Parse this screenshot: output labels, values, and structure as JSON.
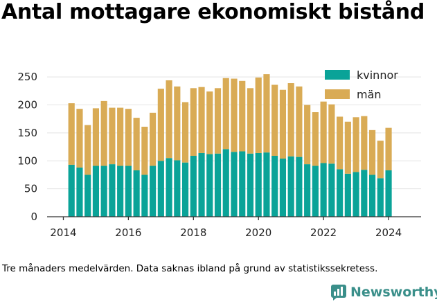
{
  "title": "Antal mottagare ekonomiskt bistånd",
  "footnote": "Tre månaders medelvärden. Data saknas ibland på grund av statistikssekretess.",
  "brand": {
    "name": "Newsworthy",
    "icon": "newsworthy-logo-icon",
    "color": "#3a8f8a"
  },
  "colors": {
    "kvinnor": "#0aa398",
    "man": "#d9ab55",
    "grid": "#e3e3e3",
    "axis": "#333333"
  },
  "chart_data": {
    "type": "bar",
    "stacked": true,
    "title": "Antal mottagare ekonomiskt bistånd",
    "xlabel": "",
    "ylabel": "",
    "ylim": [
      0,
      270
    ],
    "xlim": [
      2013.5,
      2025.0
    ],
    "grid": true,
    "legend_position": "top-right",
    "y_ticks": [
      0,
      50,
      100,
      150,
      200,
      250
    ],
    "x_ticks": [
      2014,
      2016,
      2018,
      2020,
      2022,
      2024
    ],
    "x": [
      2014.25,
      2014.5,
      2014.75,
      2015.0,
      2015.25,
      2015.5,
      2015.75,
      2016.0,
      2016.25,
      2016.5,
      2016.75,
      2017.0,
      2017.25,
      2017.5,
      2017.75,
      2018.0,
      2018.25,
      2018.5,
      2018.75,
      2019.0,
      2019.25,
      2019.5,
      2019.75,
      2020.0,
      2020.25,
      2020.5,
      2020.75,
      2021.0,
      2021.25,
      2021.5,
      2021.75,
      2022.0,
      2022.25,
      2022.5,
      2022.75,
      2023.0,
      2023.25,
      2023.5,
      2023.75,
      2024.0
    ],
    "series": [
      {
        "name": "kvinnor",
        "values": [
          93,
          88,
          75,
          91,
          91,
          94,
          91,
          91,
          83,
          75,
          91,
          100,
          105,
          101,
          97,
          109,
          114,
          112,
          113,
          121,
          116,
          117,
          113,
          114,
          115,
          109,
          104,
          108,
          107,
          94,
          91,
          96,
          95,
          85,
          77,
          80,
          84,
          75,
          69,
          83
        ]
      },
      {
        "name": "män",
        "values": [
          110,
          105,
          89,
          103,
          116,
          101,
          104,
          102,
          94,
          86,
          95,
          129,
          139,
          132,
          108,
          121,
          118,
          112,
          117,
          127,
          131,
          126,
          117,
          135,
          140,
          127,
          123,
          131,
          126,
          106,
          96,
          110,
          106,
          94,
          93,
          98,
          96,
          80,
          67,
          76
        ]
      }
    ]
  }
}
